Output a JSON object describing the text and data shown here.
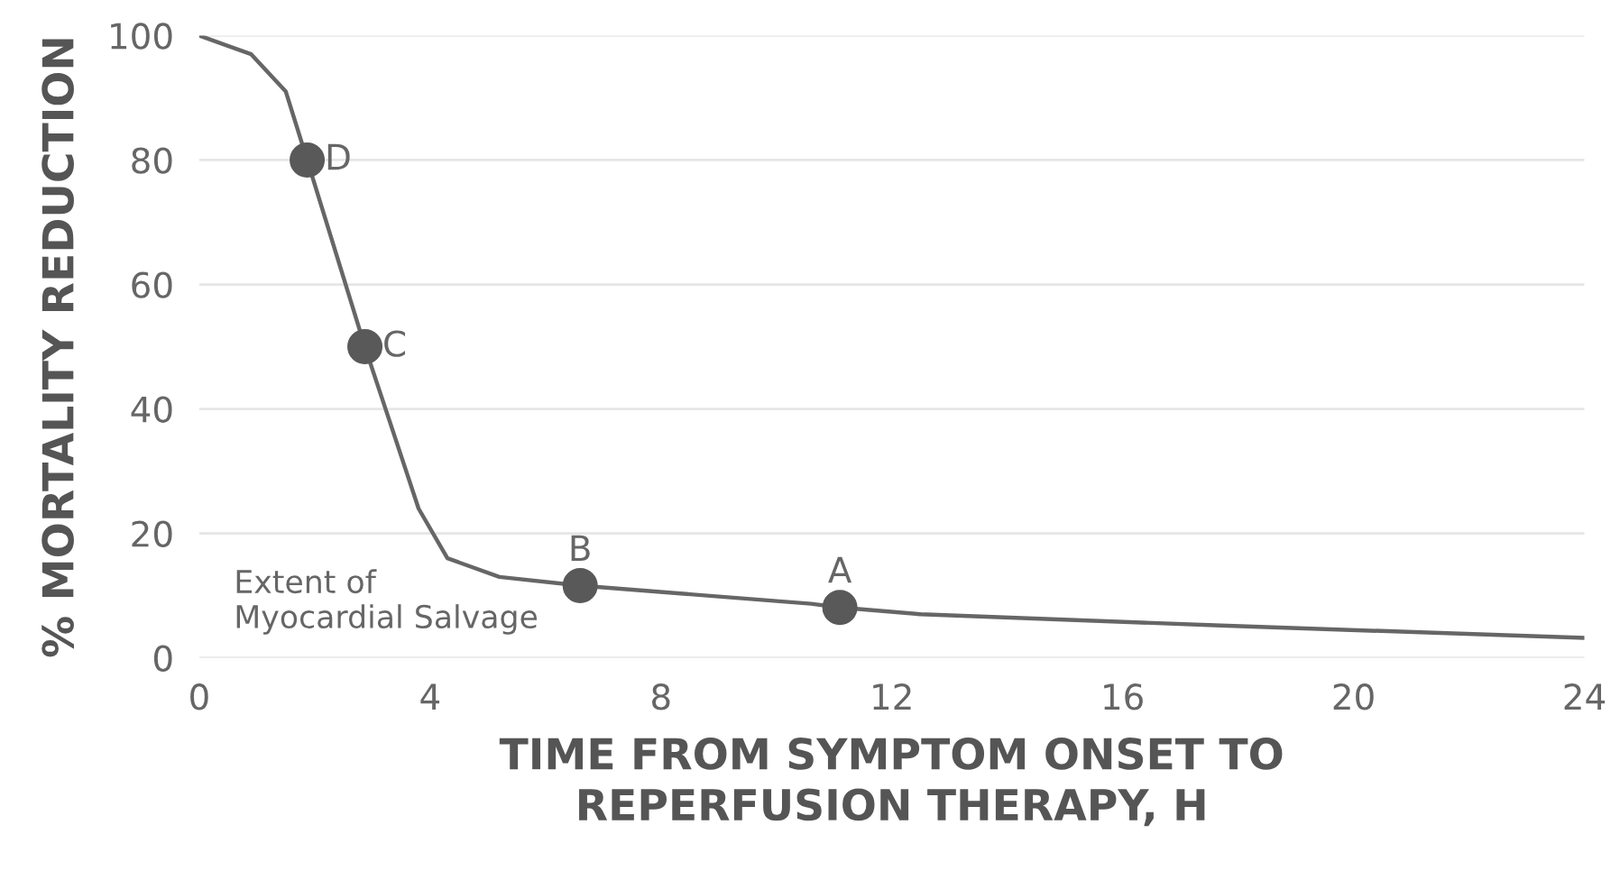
{
  "chart_data": {
    "type": "line",
    "xlabel": "TIME FROM SYMPTOM ONSET TO\nREPERFUSION THERAPY, H",
    "ylabel": "% MORTALITY REDUCTION",
    "series": [
      {
        "color": "#666666",
        "x": [
          0,
          0.9,
          1.5,
          1.87,
          2.87,
          3.3,
          3.8,
          4.3,
          5.2,
          6.6,
          10.6,
          11.1,
          12.5,
          17.7,
          24
        ],
        "values": [
          100,
          97,
          91,
          80,
          50,
          38,
          24,
          16,
          13,
          11.6,
          8.7,
          8.1,
          7,
          5.2,
          3.2
        ],
        "marker": "none"
      },
      {
        "type": "scatter",
        "color": "#595959",
        "x": [
          1.87,
          2.87,
          6.6,
          11.1
        ],
        "values": [
          80,
          50,
          11.6,
          8.1
        ],
        "marker": "circle"
      }
    ],
    "annotations": [
      {
        "text": "D",
        "x": 1.87,
        "y": 80
      },
      {
        "text": "C",
        "x": 2.87,
        "y": 50
      },
      {
        "text": "B",
        "x": 6.6,
        "y": 11.6
      },
      {
        "text": "A",
        "x": 11.1,
        "y": 8.1
      },
      "Extent of\nMyocardial Salvage"
    ],
    "xlim": [
      0,
      24
    ],
    "xticks": [
      0,
      4,
      8,
      12,
      16,
      20,
      24
    ],
    "ylim": [
      0,
      100
    ],
    "yticks": [
      0,
      20,
      40,
      60,
      80,
      100
    ],
    "grid": "y"
  }
}
